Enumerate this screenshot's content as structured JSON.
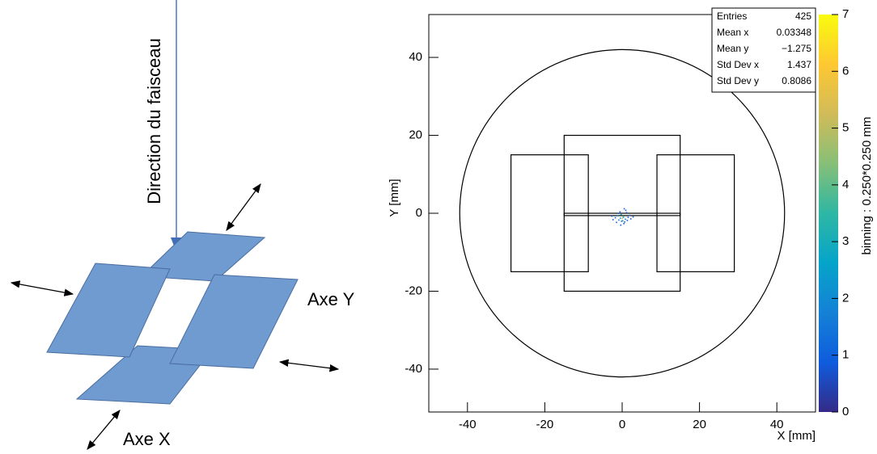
{
  "diagram": {
    "beam_label": "Direction du faisceau",
    "axis_y_label": "Axe Y",
    "axis_x_label": "Axe X"
  },
  "chart_data": {
    "type": "scatter",
    "x_label": "X [mm]",
    "y_label": "Y [mm]",
    "z_label": "binning : 0.250*0.250 mm",
    "xlim": [
      -50,
      50
    ],
    "ylim": [
      -51,
      51
    ],
    "zlim": [
      0,
      7
    ],
    "xticks": [
      -40,
      -20,
      0,
      20,
      40
    ],
    "yticks": [
      -40,
      -20,
      0,
      20,
      40
    ],
    "zticks": [
      0,
      1,
      2,
      3,
      4,
      5,
      6,
      7
    ],
    "palette": [
      "#352a87",
      "#0f5cdd",
      "#1481d6",
      "#06a4ca",
      "#2eb7a4",
      "#87bf77",
      "#d1bb59",
      "#fec832",
      "#f9fb0e"
    ],
    "stats": [
      {
        "label": "Entries",
        "value": 425
      },
      {
        "label": "Mean x",
        "value": 0.03348
      },
      {
        "label": "Mean y",
        "value": -1.275,
        "value_label": "−1.275"
      },
      {
        "label": "Std Dev x",
        "value": 1.437
      },
      {
        "label": "Std Dev y",
        "value": 0.8086
      }
    ],
    "circle": {
      "cx": 0,
      "cy": 0,
      "r": 42
    },
    "rectangles": [
      [
        -15,
        -20,
        15,
        20
      ],
      [
        -28.75,
        -15,
        -8.75,
        15
      ],
      [
        9,
        -15,
        29,
        15
      ],
      [
        -15,
        -0.6,
        15,
        0
      ]
    ],
    "x": [
      0.2,
      -0.5,
      0.8,
      -1.2,
      1.5,
      0.1,
      -0.3,
      0.6,
      -0.9,
      1.1,
      -1.8,
      2.2,
      0.4,
      -0.6,
      1.9,
      -2.4,
      0.9,
      -1.5,
      0.0,
      0.3,
      -0.2,
      1.3,
      -1.0,
      2.8,
      -2.7,
      0.5,
      -0.4
    ],
    "y": [
      -0.8,
      -1.2,
      -1.5,
      -0.6,
      -1.0,
      -1.9,
      -0.3,
      -2.2,
      -1.7,
      0.2,
      -1.1,
      -1.4,
      -2.6,
      0.4,
      -0.5,
      -1.6,
      0.8,
      -2.3,
      -1.3,
      -1.0,
      -2.0,
      -1.8,
      0.0,
      -0.9,
      -0.7,
      1.2,
      -3.0
    ],
    "z": [
      4,
      3,
      2,
      2,
      1,
      2,
      3,
      1,
      2,
      1,
      1,
      1,
      1,
      1,
      1,
      1,
      1,
      1,
      5,
      3,
      2,
      1,
      1,
      1,
      1,
      1,
      1
    ]
  }
}
